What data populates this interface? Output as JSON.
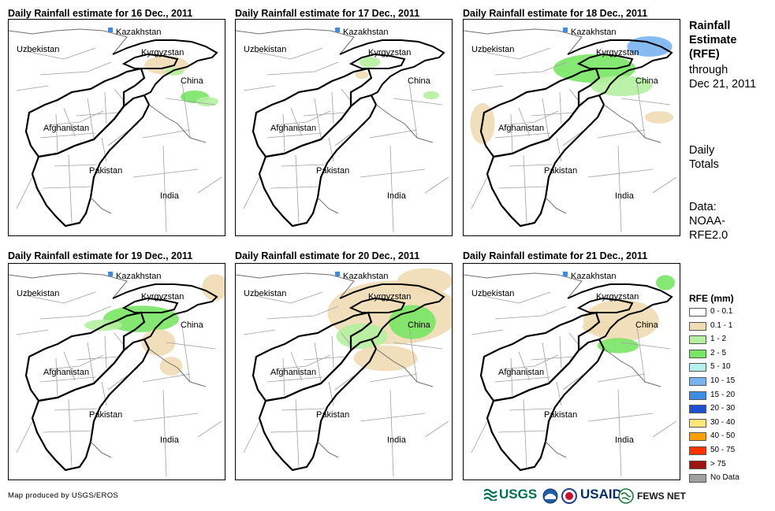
{
  "panels": [
    {
      "title": "Daily Rainfall estimate for 16 Dec., 2011",
      "rain_level": 0.3
    },
    {
      "title": "Daily Rainfall estimate for 17 Dec., 2011",
      "rain_level": 0.15
    },
    {
      "title": "Daily Rainfall estimate for 18 Dec., 2011",
      "rain_level": 0.6
    },
    {
      "title": "Daily Rainfall estimate for 19 Dec., 2011",
      "rain_level": 0.5
    },
    {
      "title": "Daily Rainfall estimate for 20 Dec., 2011",
      "rain_level": 0.65
    },
    {
      "title": "Daily Rainfall estimate for 21 Dec., 2011",
      "rain_level": 0.5
    }
  ],
  "map_labels": {
    "kazakhstan": "Kazakhstan",
    "uzbekistan": "Uzbekistan",
    "kyrgyzstan": "Kyrgyzstan",
    "china": "China",
    "afghanistan": "Afghanistan",
    "pakistan": "Pakistan",
    "india": "India"
  },
  "side": {
    "line1": "Rainfall",
    "line2": "Estimate",
    "line3": "(RFE)",
    "line4": "through",
    "line5": "Dec 21, 2011",
    "totals1": "Daily",
    "totals2": "Totals",
    "data1": "Data:",
    "data2": "NOAA-",
    "data3": "RFE2.0"
  },
  "legend": {
    "title": "RFE (mm)",
    "items": [
      {
        "label": "0 - 0.1",
        "color": "#ffffff"
      },
      {
        "label": "0.1 - 1",
        "color": "#f0dcb4"
      },
      {
        "label": "1 - 2",
        "color": "#b4f0a0"
      },
      {
        "label": "2 - 5",
        "color": "#78e664"
      },
      {
        "label": "5 - 10",
        "color": "#b4f0f0"
      },
      {
        "label": "10 - 15",
        "color": "#78b4f0"
      },
      {
        "label": "15 - 20",
        "color": "#3c8ce6"
      },
      {
        "label": "20 - 30",
        "color": "#1e50d2"
      },
      {
        "label": "30 - 40",
        "color": "#ffe678"
      },
      {
        "label": "40 - 50",
        "color": "#ffa000"
      },
      {
        "label": "50 - 75",
        "color": "#ff3200"
      },
      {
        "label": "> 75",
        "color": "#a01414"
      },
      {
        "label": "No Data",
        "color": "#a0a0a0"
      }
    ]
  },
  "credit": "Map produced by USGS/EROS",
  "logos": {
    "usgs": "USGS",
    "usaid": "USAID",
    "fewsnet": "FEWS NET"
  }
}
